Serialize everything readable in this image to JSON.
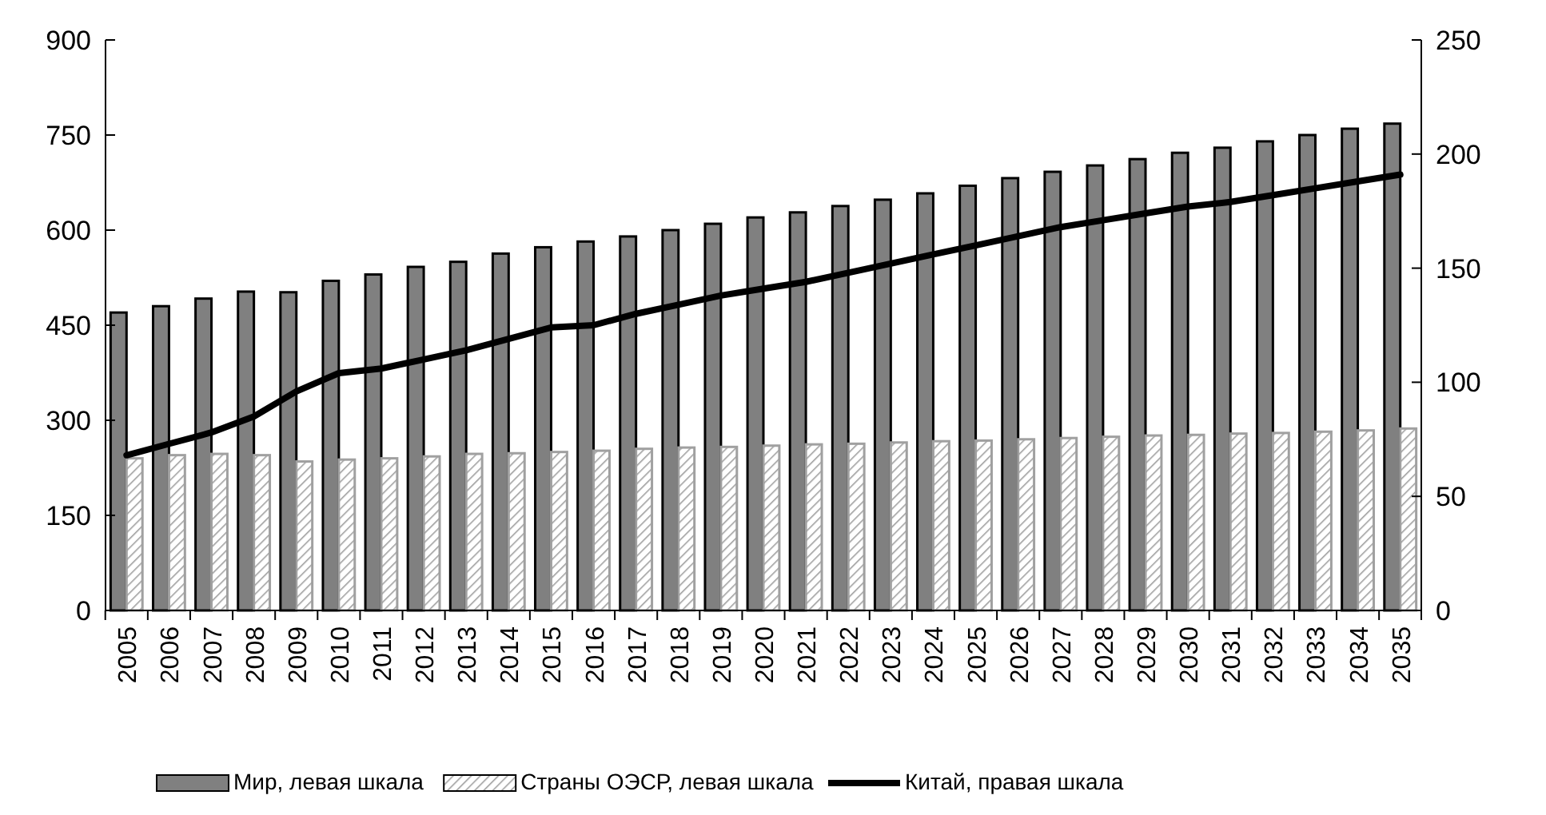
{
  "chart_data": {
    "type": "bar",
    "categories": [
      "2005",
      "2006",
      "2007",
      "2008",
      "2009",
      "2010",
      "2011",
      "2012",
      "2013",
      "2014",
      "2015",
      "2016",
      "2017",
      "2018",
      "2019",
      "2020",
      "2021",
      "2022",
      "2023",
      "2024",
      "2025",
      "2026",
      "2027",
      "2028",
      "2029",
      "2030",
      "2031",
      "2032",
      "2033",
      "2034",
      "2035"
    ],
    "series": [
      {
        "name": "Мир, левая шкала",
        "color": "#808080",
        "values": [
          470,
          480,
          492,
          503,
          502,
          520,
          530,
          542,
          550,
          563,
          573,
          582,
          590,
          600,
          610,
          620,
          628,
          638,
          648,
          658,
          670,
          682,
          692,
          702,
          712,
          722,
          730,
          740,
          750,
          760,
          768
        ]
      },
      {
        "name": "Страны ОЭСР, левая шкала",
        "color": "#a0a0a0",
        "values": [
          240,
          245,
          247,
          245,
          235,
          238,
          240,
          243,
          247,
          248,
          250,
          252,
          255,
          257,
          258,
          260,
          262,
          263,
          265,
          267,
          268,
          270,
          272,
          274,
          276,
          277,
          279,
          280,
          282,
          284,
          287
        ]
      },
      {
        "name": "Китай, правая шкала",
        "type": "line",
        "axis": "y2",
        "color": "#000000",
        "values": [
          68,
          73,
          78,
          85,
          96,
          104,
          106,
          110,
          114,
          119,
          124,
          125,
          130,
          134,
          138,
          141,
          144,
          148,
          152,
          156,
          160,
          164,
          168,
          171,
          174,
          177,
          179,
          182,
          185,
          188,
          191
        ]
      }
    ],
    "ylim": [
      0,
      900
    ],
    "yticks": [
      0,
      150,
      300,
      450,
      600,
      750,
      900
    ],
    "y2lim": [
      0,
      250
    ],
    "y2ticks": [
      0,
      50,
      100,
      150,
      200,
      250
    ],
    "legend": "bottom",
    "grid": false,
    "marker": "none",
    "line_style": "solid"
  }
}
